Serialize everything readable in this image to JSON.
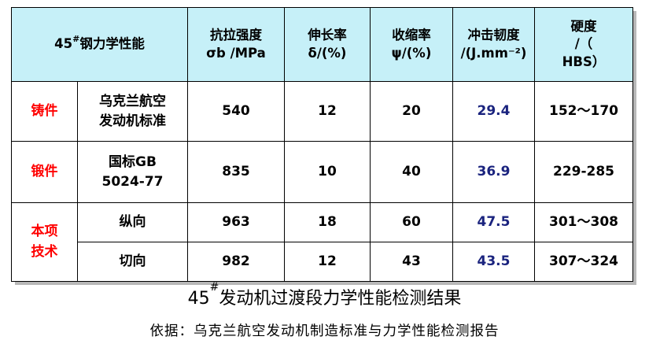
{
  "table": {
    "header": {
      "label_prefix": "45",
      "label_sup": "#",
      "label_suffix": "钢力学性能",
      "tensile": [
        "抗拉强度",
        "σb /MPa"
      ],
      "elongation": [
        "伸长率",
        "δ/(%)"
      ],
      "reduction": [
        "收缩率",
        "ψ/(%)"
      ],
      "impact": [
        "冲击韧度",
        "/(J.mm⁻²)"
      ],
      "hardness": [
        "硬度",
        "/（",
        "HBS）"
      ]
    },
    "rows": [
      {
        "group": [
          "铸件"
        ],
        "standard": [
          "乌克兰航空",
          "发动机标准"
        ],
        "tensile": "540",
        "elongation": "12",
        "reduction": "20",
        "impact": "29.4",
        "hardness": "152～170"
      },
      {
        "group": [
          "锻件"
        ],
        "standard": [
          "国标GB",
          "5024-77"
        ],
        "tensile": "835",
        "elongation": "10",
        "reduction": "40",
        "impact": "36.9",
        "hardness": "229-285"
      },
      {
        "group": [
          "本项",
          "技术"
        ],
        "standard": [
          "纵向"
        ],
        "tensile": "963",
        "elongation": "18",
        "reduction": "60",
        "impact": "47.5",
        "hardness": "301～308"
      },
      {
        "standard": [
          "切向"
        ],
        "tensile": "982",
        "elongation": "12",
        "reduction": "43",
        "impact": "43.5",
        "hardness": "307～324"
      }
    ]
  },
  "caption": {
    "prefix": "45",
    "sup": "#",
    "suffix": "发动机过渡段力学性能检测结果"
  },
  "basis": "依据：乌克兰航空发动机制造标准与力学性能检测报告",
  "colors": {
    "header_bg": "#c6f0f8",
    "group_text": "#ff0000",
    "impact_text": "#1a237e"
  }
}
